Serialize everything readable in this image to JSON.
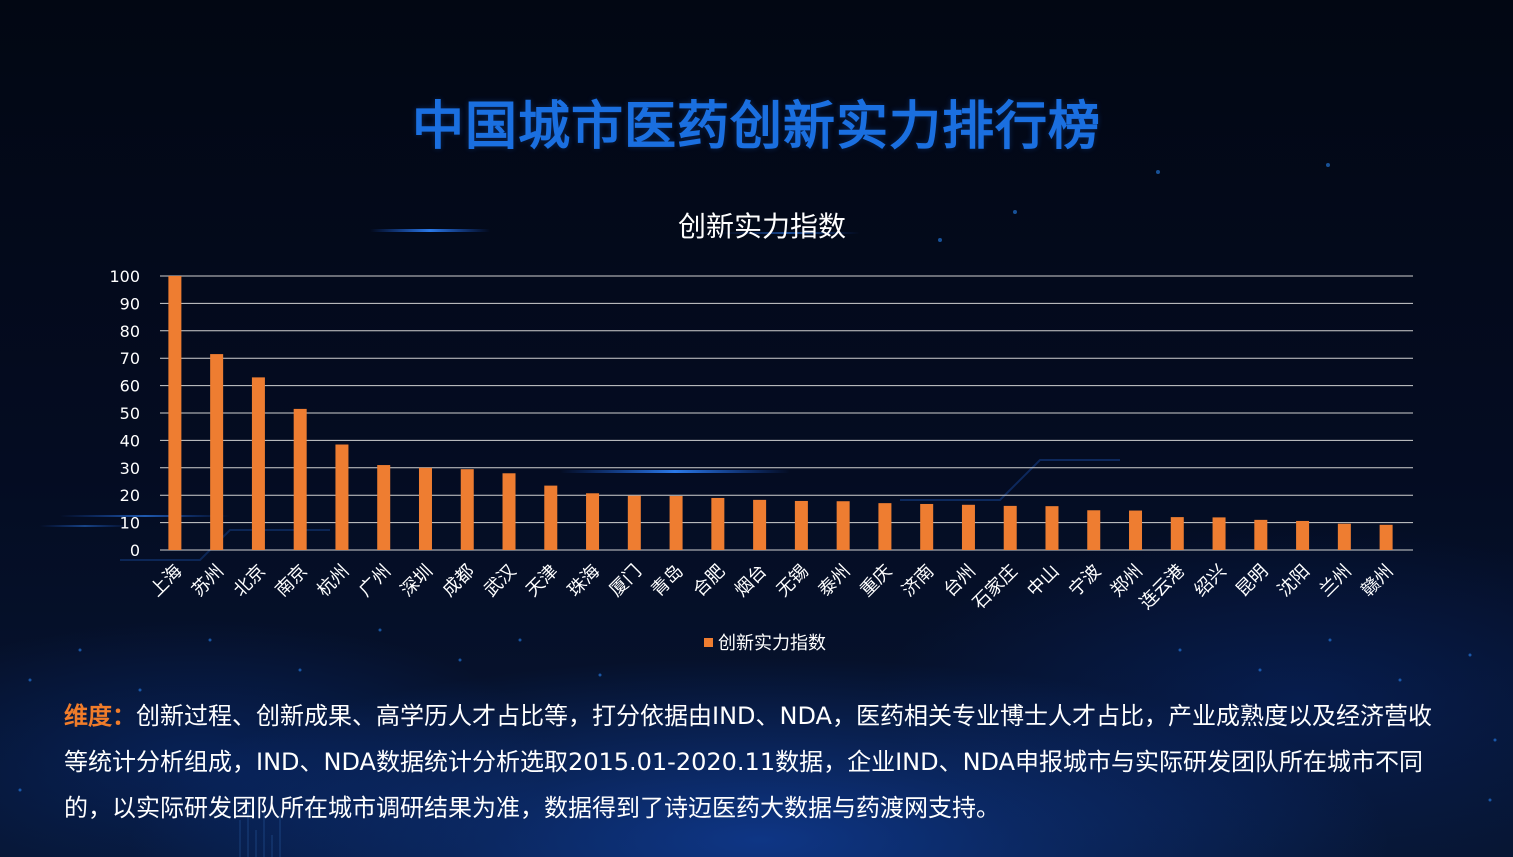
{
  "page": {
    "title": "中国城市医药创新实力排行榜",
    "description_label": "维度：",
    "description_text": "创新过程、创新成果、高学历人才占比等，打分依据由IND、NDA，医药相关专业博士人才占比，产业成熟度以及经济营收等统计分析组成，IND、NDA数据统计分析选取2015.01-2020.11数据，企业IND、NDA申报城市与实际研发团队所在城市不同的，以实际研发团队所在城市调研结果为准，数据得到了诗迈医药大数据与药渡网支持。"
  },
  "colors": {
    "bar": "#ee7d31",
    "title": "#1a6fe0",
    "label_orange": "#f07c2a",
    "grid": "#d0d0d0",
    "text": "#ffffff"
  },
  "chart_data": {
    "type": "bar",
    "title": "创新实力指数",
    "xlabel": "",
    "ylabel": "",
    "ylim": [
      0,
      100
    ],
    "yticks": [
      0,
      10,
      20,
      30,
      40,
      50,
      60,
      70,
      80,
      90,
      100
    ],
    "grid": true,
    "legend_position": "bottom",
    "categories": [
      "上海",
      "苏州",
      "北京",
      "南京",
      "杭州",
      "广州",
      "深圳",
      "成都",
      "武汉",
      "天津",
      "珠海",
      "厦门",
      "青岛",
      "合肥",
      "烟台",
      "无锡",
      "泰州",
      "重庆",
      "济南",
      "台州",
      "石家庄",
      "中山",
      "宁波",
      "郑州",
      "连云港",
      "绍兴",
      "昆明",
      "沈阳",
      "兰州",
      "赣州"
    ],
    "series": [
      {
        "name": "创新实力指数",
        "values": [
          100,
          71.5,
          63,
          51.5,
          38.5,
          31,
          30,
          29.5,
          28,
          23.5,
          20.7,
          19.8,
          19.7,
          19,
          18.3,
          17.9,
          17.8,
          17.1,
          16.8,
          16.5,
          16.1,
          16,
          14.5,
          14.4,
          12,
          11.9,
          11,
          10.6,
          9.6,
          9.2
        ]
      }
    ]
  }
}
